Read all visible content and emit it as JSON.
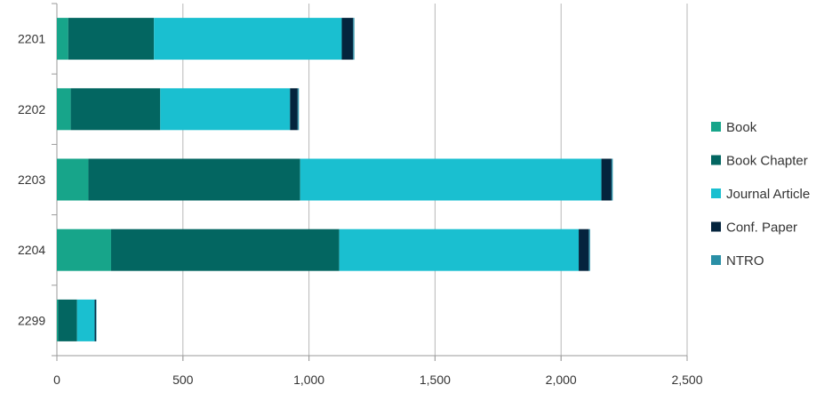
{
  "chart_data": {
    "type": "bar",
    "orientation": "horizontal",
    "stacked": true,
    "title": "",
    "xlabel": "",
    "ylabel": "",
    "categories": [
      "2201",
      "2202",
      "2203",
      "2204",
      "2299"
    ],
    "xlim": [
      0,
      2500
    ],
    "xticks": [
      0,
      500,
      1000,
      1500,
      2000,
      2500
    ],
    "xtick_labels": [
      "0",
      "500",
      "1,000",
      "1,500",
      "2,000",
      "2,500"
    ],
    "grid": "vertical",
    "legend_position": "right",
    "series": [
      {
        "name": "Book",
        "color": "#17a58a",
        "values": [
          45,
          55,
          125,
          215,
          5
        ]
      },
      {
        "name": "Book Chapter",
        "color": "#036661",
        "values": [
          340,
          355,
          840,
          905,
          75
        ]
      },
      {
        "name": "Journal Article",
        "color": "#1abfd0",
        "values": [
          745,
          515,
          1195,
          950,
          70
        ]
      },
      {
        "name": "Conf. Paper",
        "color": "#04243d",
        "values": [
          45,
          30,
          40,
          40,
          5
        ]
      },
      {
        "name": "NTRO",
        "color": "#2a8fa6",
        "values": [
          5,
          5,
          5,
          5,
          2
        ]
      }
    ]
  }
}
